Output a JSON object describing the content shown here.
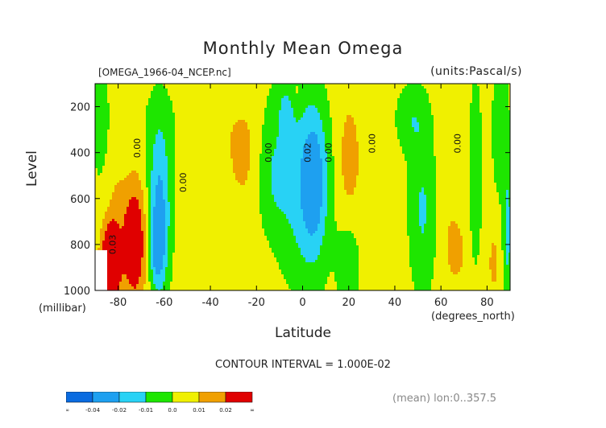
{
  "title": "Monthly Mean Omega",
  "file_label": "[OMEGA_1966-04_NCEP.nc]",
  "units_label": "(units:Pascal/s)",
  "contour_interval": "CONTOUR INTERVAL = 1.000E-02",
  "mean_label": "(mean) lon:0..357.5",
  "colorbar": {
    "colors": [
      "#0a6be0",
      "#1ea0f0",
      "#28d2f5",
      "#1ee600",
      "#f0f000",
      "#f0a000",
      "#e00000"
    ],
    "labels": [
      "-∞",
      "-0.04",
      "-0.02",
      "-0.01",
      "0.0",
      "0.01",
      "0.02",
      "∞"
    ]
  },
  "chart_data": {
    "type": "heatmap",
    "title": "Monthly Mean Omega",
    "xlabel": "Latitude",
    "xlabel_unit": "(degrees_north)",
    "ylabel": "Level",
    "ylabel_unit": "(millibar)",
    "xlim": [
      -90,
      90
    ],
    "ylim": [
      1000,
      100
    ],
    "x_ticks": [
      -80,
      -60,
      -40,
      -20,
      0,
      20,
      40,
      60,
      80
    ],
    "x_tick_labels": [
      "-80",
      "-60",
      "-40",
      "-20",
      "0",
      "20",
      "40",
      "60",
      "80"
    ],
    "y_ticks": [
      200,
      400,
      600,
      800,
      1000
    ],
    "y_tick_labels": [
      "200",
      "400",
      "600",
      "800",
      "1000"
    ],
    "contour_labels": [
      {
        "text": "0.00",
        "lat": -70.5,
        "level": 380
      },
      {
        "text": "0.00",
        "lat": -50.5,
        "level": 530
      },
      {
        "text": "0.00",
        "lat": -13.5,
        "level": 400
      },
      {
        "text": "0.02",
        "lat": 3.5,
        "level": 400
      },
      {
        "text": "0.00",
        "lat": 12.5,
        "level": 400
      },
      {
        "text": "0.00",
        "lat": 31.5,
        "level": 360
      },
      {
        "text": "0.00",
        "lat": 68.5,
        "level": 360
      },
      {
        "text": "0.03",
        "lat": -81.0,
        "level": 800
      }
    ],
    "background_value": 0.005,
    "blobs": [
      {
        "lat": -70,
        "level": 240,
        "dlat": 22,
        "dlev": 180,
        "v": -0.003
      },
      {
        "lat": -56,
        "level": 220,
        "dlat": 5,
        "dlev": 100,
        "v": -0.001
      },
      {
        "lat": -27,
        "level": 170,
        "dlat": 6,
        "dlev": 100,
        "v": -0.003
      },
      {
        "lat": -10,
        "level": 140,
        "dlat": 4,
        "dlev": 90,
        "v": -0.003
      },
      {
        "lat": -36,
        "level": 600,
        "dlat": 10,
        "dlev": 320,
        "v": -0.005
      },
      {
        "lat": -13,
        "level": 560,
        "dlat": 7,
        "dlev": 350,
        "v": -0.018
      },
      {
        "lat": 2,
        "level": 550,
        "dlat": 10,
        "dlev": 430,
        "v": -0.022
      },
      {
        "lat": -7,
        "level": 260,
        "dlat": 3,
        "dlev": 130,
        "v": -0.014
      },
      {
        "lat": 5,
        "level": 520,
        "dlat": 5,
        "dlev": 280,
        "v": -0.018
      },
      {
        "lat": 47,
        "level": 250,
        "dlat": 7,
        "dlev": 150,
        "v": -0.012
      },
      {
        "lat": 52,
        "level": 650,
        "dlat": 6,
        "dlev": 380,
        "v": -0.016
      },
      {
        "lat": 20,
        "level": 900,
        "dlat": 5,
        "dlev": 200,
        "v": -0.012
      },
      {
        "lat": 75,
        "level": 480,
        "dlat": 3,
        "dlev": 440,
        "v": -0.012
      },
      {
        "lat": 86,
        "level": 300,
        "dlat": 4,
        "dlev": 300,
        "v": -0.013
      },
      {
        "lat": -88,
        "level": 250,
        "dlat": 4,
        "dlev": 350,
        "v": -0.008
      },
      {
        "lat": -62,
        "level": 640,
        "dlat": 5,
        "dlev": 380,
        "v": -0.028
      },
      {
        "lat": -63,
        "level": 820,
        "dlat": 3,
        "dlev": 150,
        "v": -0.018
      },
      {
        "lat": 89,
        "level": 750,
        "dlat": 2,
        "dlev": 250,
        "v": -0.02
      },
      {
        "lat": -27,
        "level": 400,
        "dlat": 8,
        "dlev": 260,
        "v": 0.01
      },
      {
        "lat": -14,
        "level": 750,
        "dlat": 6,
        "dlev": 300,
        "v": 0.007
      },
      {
        "lat": 20,
        "level": 430,
        "dlat": 5,
        "dlev": 250,
        "v": 0.01
      },
      {
        "lat": 63,
        "level": 600,
        "dlat": 4,
        "dlev": 380,
        "v": 0.004
      },
      {
        "lat": 67,
        "level": 830,
        "dlat": 4,
        "dlev": 130,
        "v": 0.008
      },
      {
        "lat": -80,
        "level": 600,
        "dlat": 3,
        "dlev": 100,
        "v": 0.006
      },
      {
        "lat": -73,
        "level": 790,
        "dlat": 5,
        "dlev": 240,
        "v": 0.03
      },
      {
        "lat": -83,
        "level": 870,
        "dlat": 4,
        "dlev": 170,
        "v": 0.04
      },
      {
        "lat": 83,
        "level": 880,
        "dlat": 2,
        "dlev": 110,
        "v": 0.01
      },
      {
        "lat": -2,
        "level": 140,
        "dlat": 2,
        "dlev": 40,
        "v": 0.004
      }
    ],
    "masked_region": {
      "lat": [
        -90,
        -85
      ],
      "level": [
        820,
        1000
      ]
    },
    "levels": [
      -0.04,
      -0.02,
      -0.01,
      0.0,
      0.01,
      0.02
    ]
  }
}
